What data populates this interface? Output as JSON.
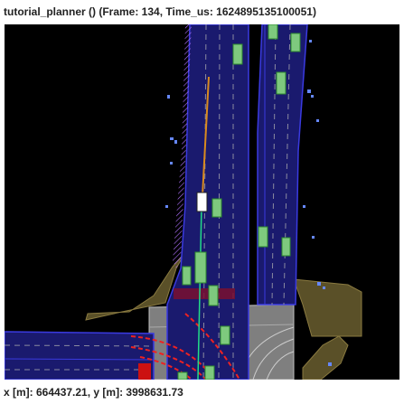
{
  "window": {
    "title": "tutorial_planner () (Frame: 134, Time_us: 1624895135100051)"
  },
  "status": {
    "coordinates": "x [m]: 664437.21, y [m]: 3998631.73"
  },
  "colors": {
    "background": "#000000",
    "lane_fill": "#1a1a6e",
    "lane_border": "#3a3ae0",
    "lane_divider": "#8a8aa0",
    "vehicle_fill": "#7ec97e",
    "vehicle_border": "#2e8a2e",
    "ego_vehicle": "#ffffff",
    "planned_path": "#d98a1e",
    "reference_line": "#22dd88",
    "walkway": "#5a5028",
    "intersection": "#8a8a8a",
    "crosswalk": "#7a1030",
    "stop_line": "#cc1111",
    "pedestrian": "#6688ff",
    "boundary_hatch": "#b070ff"
  }
}
